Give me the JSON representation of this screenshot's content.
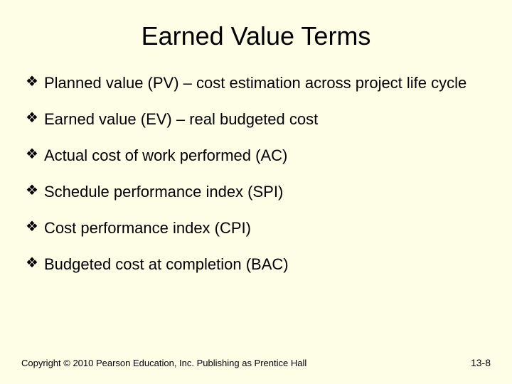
{
  "slide": {
    "background_color": "#fefde6",
    "title": "Earned Value Terms",
    "title_fontsize": 36,
    "title_color": "#000000",
    "bullet_glyph": "❖",
    "bullet_fontsize": 22,
    "bullet_color": "#000000",
    "bullets": [
      "Planned value (PV) – cost estimation across project life cycle",
      "Earned value (EV) – real budgeted cost",
      "Actual cost of work performed (AC)",
      "Schedule performance index (SPI)",
      "Cost performance index (CPI)",
      "Budgeted cost at completion (BAC)"
    ],
    "footer": {
      "copyright": "Copyright © 2010 Pearson Education, Inc. Publishing as Prentice Hall",
      "page_number": "13-8",
      "fontsize": 13,
      "color": "#000000"
    }
  }
}
